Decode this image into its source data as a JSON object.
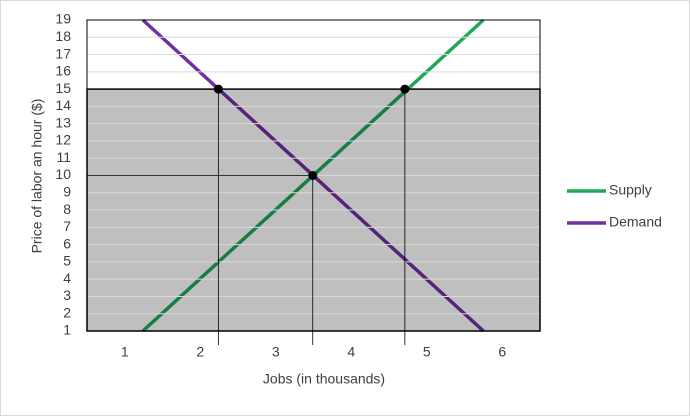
{
  "chart_data": {
    "type": "line",
    "x_label": "Jobs (in thousands)",
    "y_label": "Price of labor an hour ($)",
    "xlim": [
      0.5,
      6.5
    ],
    "xticks": [
      1,
      2,
      3,
      4,
      5,
      6
    ],
    "ylim": [
      1,
      19
    ],
    "yticks": [
      1,
      2,
      3,
      4,
      5,
      6,
      7,
      8,
      9,
      10,
      11,
      12,
      13,
      14,
      15,
      16,
      17,
      18,
      19
    ],
    "grid": true,
    "series": [
      {
        "name": "Supply",
        "color": "#1fa85a",
        "x": [
          1.24,
          5.75
        ],
        "values": [
          1,
          19
        ]
      },
      {
        "name": "Demand",
        "color": "#7030a0",
        "x": [
          1.24,
          5.75
        ],
        "values": [
          19,
          1
        ]
      }
    ],
    "shaded_below": 15,
    "floor_points": [
      {
        "x": 2.24,
        "y": 15
      },
      {
        "x": 4.71,
        "y": 15
      }
    ],
    "equilibrium": {
      "x": 3.49,
      "y": 10
    },
    "legend": "right"
  }
}
